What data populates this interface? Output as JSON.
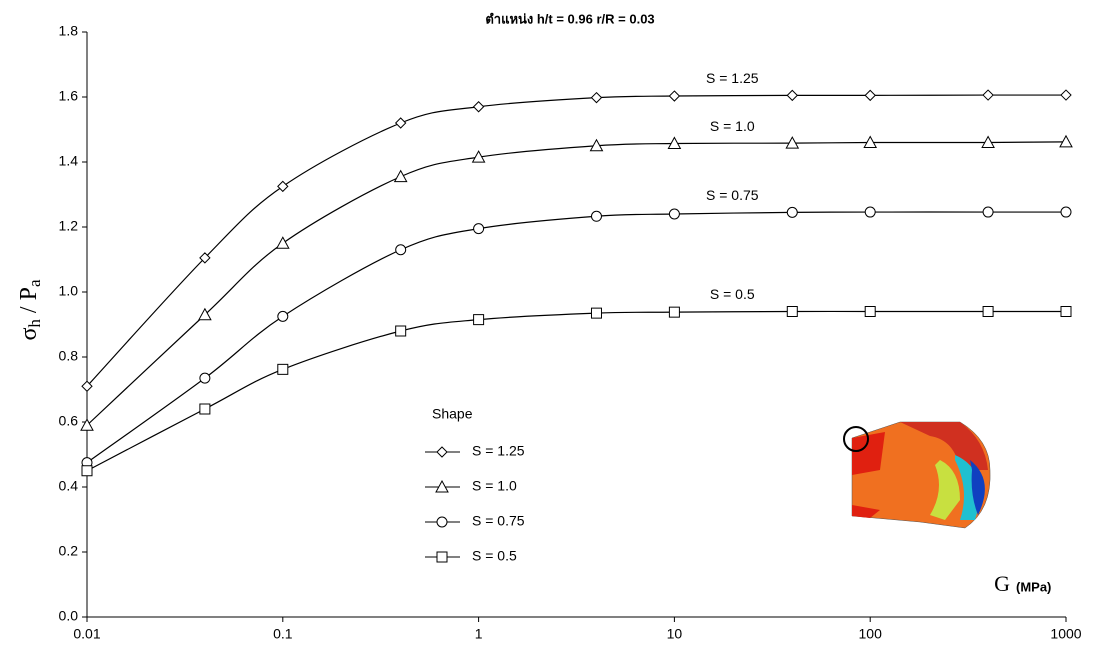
{
  "chart_data": {
    "type": "line",
    "title": "ตำแหน่ง h/t = 0.96   r/R  = 0.03",
    "y_label_main": "σ",
    "y_label_sub1": "h",
    "y_label_mid": " / P",
    "y_label_sub2": "a",
    "x_label_main": "G",
    "x_label_unit": "(MPa)",
    "legend_title": "Shape",
    "x": [
      0.01,
      0.04,
      0.1,
      0.4,
      1,
      4,
      10,
      40,
      100,
      400,
      1000
    ],
    "x_log": true,
    "xlim": [
      0.01,
      1000
    ],
    "xticks": [
      0.01,
      0.1,
      1,
      10,
      100,
      1000
    ],
    "ylim": [
      0,
      1.8
    ],
    "yticks": [
      {
        "value": 0,
        "label": "0.0"
      },
      0.2,
      0.4,
      0.6,
      0.8,
      {
        "value": 1,
        "label": "1.0"
      },
      1.2,
      1.4,
      1.6,
      1.8
    ],
    "series": [
      {
        "name": "S = 1.25",
        "color": "#000000",
        "marker": "diamond",
        "values": [
          0.71,
          1.105,
          1.325,
          1.52,
          1.57,
          1.598,
          1.603,
          1.605,
          1.605,
          1.606,
          1.606
        ]
      },
      {
        "name": "S = 1.0",
        "color": "#000000",
        "marker": "triangle",
        "values": [
          0.59,
          0.93,
          1.15,
          1.355,
          1.415,
          1.45,
          1.457,
          1.458,
          1.46,
          1.46,
          1.462
        ]
      },
      {
        "name": "S = 0.75",
        "color": "#000000",
        "marker": "circle",
        "values": [
          0.475,
          0.735,
          0.925,
          1.13,
          1.195,
          1.233,
          1.24,
          1.245,
          1.246,
          1.246,
          1.246
        ]
      },
      {
        "name": "S = 0.5",
        "color": "#000000",
        "marker": "square",
        "values": [
          0.45,
          0.64,
          0.762,
          0.88,
          0.915,
          0.935,
          0.938,
          0.94,
          0.94,
          0.94,
          0.94
        ]
      }
    ]
  }
}
